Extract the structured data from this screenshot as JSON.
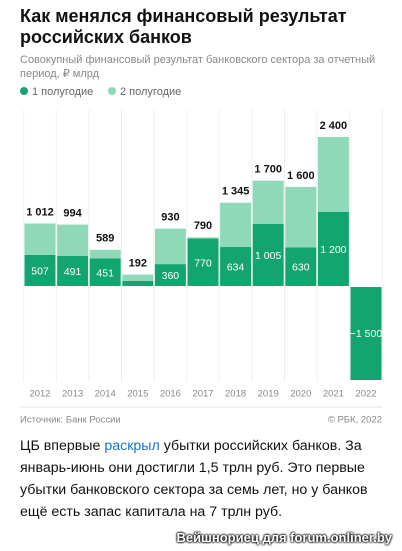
{
  "header": {
    "title": "Как менялся финансовый результат российских банков",
    "subtitle": "Совокупный финансовый результат банковского сектора за отчетный период, ₽ млрд"
  },
  "chart_data": {
    "type": "stacked-bar",
    "categories": [
      "2012",
      "2013",
      "2014",
      "2015",
      "2016",
      "2017",
      "2018",
      "2019",
      "2020",
      "2021",
      "2022"
    ],
    "series": [
      {
        "name": "1 полугодие",
        "color": "#13a56f",
        "values": [
          507,
          491,
          451,
          90,
          360,
          770,
          634,
          1005,
          630,
          1200,
          -1500
        ],
        "value_labels": [
          "507",
          "491",
          "451",
          null,
          "360",
          "770",
          "634",
          "1 005",
          "630",
          "1 200",
          "−1 500"
        ]
      },
      {
        "name": "2 полугодие",
        "color": "#8fd9b8",
        "values": [
          505,
          503,
          138,
          102,
          570,
          20,
          711,
          695,
          970,
          1200,
          null
        ]
      }
    ],
    "total_labels": [
      "1 012",
      "994",
      "589",
      "192",
      "930",
      "790",
      "1 345",
      "1 700",
      "1 600",
      "2 400",
      null
    ],
    "ylim": [
      -1500,
      2400
    ]
  },
  "footer": {
    "source": "Источник: Банк России",
    "copyright": "© РБК, 2022"
  },
  "article": {
    "before": "ЦБ впервые ",
    "link": "раскрыл",
    "after": " убытки российских банков. За январь-июнь они достигли 1,5 трлн руб. Это первые убытки банковского сектора за семь лет, но у банков ещё есть запас капитала на 7 трлн руб."
  },
  "watermark": "Вейшнориец для forum.onliner.by"
}
